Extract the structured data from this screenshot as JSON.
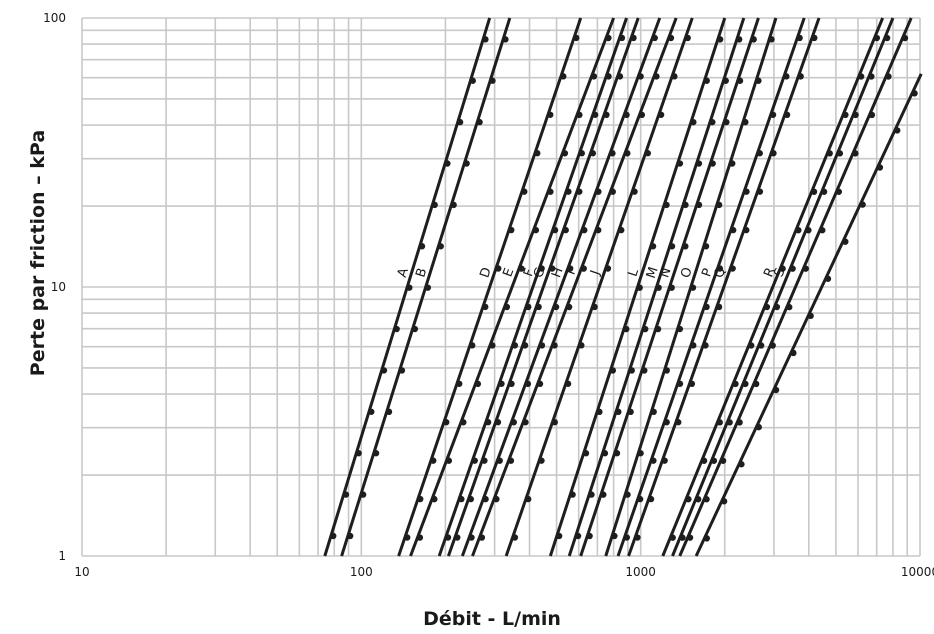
{
  "chart_data": {
    "type": "line",
    "xscale": "log",
    "yscale": "log",
    "xlim": [
      10,
      10000
    ],
    "ylim": [
      1,
      100
    ],
    "xlabel": "Débit - L/min",
    "ylabel": "Perte par friction – kPa",
    "x_ticks": [
      {
        "value": 10,
        "label": "10"
      },
      {
        "value": 100,
        "label": "100"
      },
      {
        "value": 1000,
        "label": "1000"
      },
      {
        "value": 10000,
        "label": "10000"
      }
    ],
    "y_ticks": [
      {
        "value": 1,
        "label": "1"
      },
      {
        "value": 10,
        "label": "10"
      },
      {
        "value": 100,
        "label": "100"
      }
    ],
    "grid": true,
    "series": [
      {
        "name": "A",
        "x": [
          74,
          288
        ],
        "y": [
          1,
          100
        ]
      },
      {
        "name": "B",
        "x": [
          85,
          340
        ],
        "y": [
          1,
          100
        ]
      },
      {
        "name": "D",
        "x": [
          136,
          610
        ],
        "y": [
          1,
          100
        ]
      },
      {
        "name": "E",
        "x": [
          150,
          800
        ],
        "y": [
          1,
          100
        ]
      },
      {
        "name": "F",
        "x": [
          190,
          890
        ],
        "y": [
          1,
          100
        ]
      },
      {
        "name": "G",
        "x": [
          205,
          980
        ],
        "y": [
          1,
          100
        ]
      },
      {
        "name": "H",
        "x": [
          230,
          1170
        ],
        "y": [
          1,
          100
        ]
      },
      {
        "name": "I",
        "x": [
          250,
          1340
        ],
        "y": [
          1,
          100
        ]
      },
      {
        "name": "J",
        "x": [
          330,
          1530
        ],
        "y": [
          1,
          100
        ]
      },
      {
        "name": "L",
        "x": [
          475,
          2000
        ],
        "y": [
          1,
          100
        ]
      },
      {
        "name": "M",
        "x": [
          555,
          2340
        ],
        "y": [
          1,
          100
        ]
      },
      {
        "name": "N",
        "x": [
          610,
          2640
        ],
        "y": [
          1,
          100
        ]
      },
      {
        "name": "O",
        "x": [
          750,
          3050
        ],
        "y": [
          1,
          100
        ]
      },
      {
        "name": "P",
        "x": [
          830,
          3850
        ],
        "y": [
          1,
          100
        ]
      },
      {
        "name": "Q",
        "x": [
          905,
          4350
        ],
        "y": [
          1,
          100
        ]
      },
      {
        "name": "R",
        "x": [
          1200,
          7350
        ],
        "y": [
          1,
          100
        ]
      },
      {
        "name": "S",
        "x": [
          1300,
          8000
        ],
        "y": [
          1,
          100
        ]
      },
      {
        "name": "",
        "x": [
          1380,
          9300
        ],
        "y": [
          1,
          100
        ]
      },
      {
        "name": "",
        "x": [
          1580,
          10100
        ],
        "y": [
          1,
          62
        ]
      }
    ]
  }
}
